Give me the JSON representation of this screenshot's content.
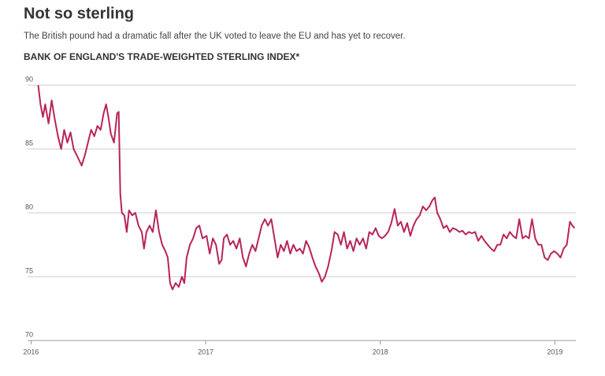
{
  "chart_data": {
    "type": "line",
    "title": "Not so sterling",
    "subtitle": "The British pound had a dramatic fall after the UK voted to leave the EU and has yet to recover.",
    "chart_title": "BANK OF ENGLAND'S TRADE-WEIGHTED STERLING INDEX*",
    "x": [
      2016.041,
      2016.054,
      2016.068,
      2016.081,
      2016.1,
      2016.118,
      2016.136,
      2016.154,
      2016.172,
      2016.19,
      2016.208,
      2016.226,
      2016.244,
      2016.262,
      2016.29,
      2016.308,
      2016.326,
      2016.344,
      2016.362,
      2016.38,
      2016.398,
      2016.416,
      2016.43,
      2016.443,
      2016.457,
      2016.475,
      2016.493,
      2016.502,
      2016.511,
      2016.52,
      2016.534,
      2016.548,
      2016.561,
      2016.579,
      2016.597,
      2016.615,
      2016.634,
      2016.647,
      2016.661,
      2016.679,
      2016.697,
      2016.715,
      2016.733,
      2016.751,
      2016.769,
      2016.783,
      2016.796,
      2016.81,
      2016.828,
      2016.846,
      2016.864,
      2016.878,
      2016.891,
      2016.91,
      2016.928,
      2016.946,
      2016.964,
      2016.982,
      2017.005,
      2017.023,
      2017.041,
      2017.059,
      2017.077,
      2017.091,
      2017.104,
      2017.122,
      2017.14,
      2017.158,
      2017.176,
      2017.195,
      2017.213,
      2017.231,
      2017.249,
      2017.267,
      2017.285,
      2017.303,
      2017.321,
      2017.339,
      2017.357,
      2017.376,
      2017.394,
      2017.412,
      2017.43,
      2017.448,
      2017.466,
      2017.484,
      2017.502,
      2017.52,
      2017.539,
      2017.557,
      2017.575,
      2017.593,
      2017.611,
      2017.629,
      2017.647,
      2017.665,
      2017.683,
      2017.701,
      2017.72,
      2017.738,
      2017.756,
      2017.774,
      2017.792,
      2017.81,
      2017.828,
      2017.846,
      2017.864,
      2017.882,
      2017.901,
      2017.919,
      2017.937,
      2017.955,
      2017.973,
      2017.991,
      2018.009,
      2018.027,
      2018.045,
      2018.063,
      2018.082,
      2018.1,
      2018.118,
      2018.136,
      2018.154,
      2018.172,
      2018.19,
      2018.208,
      2018.226,
      2018.244,
      2018.263,
      2018.281,
      2018.299,
      2018.312,
      2018.326,
      2018.344,
      2018.362,
      2018.38,
      2018.398,
      2018.416,
      2018.434,
      2018.453,
      2018.471,
      2018.489,
      2018.507,
      2018.525,
      2018.543,
      2018.561,
      2018.579,
      2018.597,
      2018.615,
      2018.634,
      2018.652,
      2018.67,
      2018.688,
      2018.706,
      2018.724,
      2018.742,
      2018.76,
      2018.778,
      2018.796,
      2018.815,
      2018.833,
      2018.851,
      2018.869,
      2018.887,
      2018.905,
      2018.923,
      2018.941,
      2018.959,
      2018.977,
      2018.996,
      2019.014,
      2019.032,
      2019.05,
      2019.068,
      2019.086,
      2019.1,
      2019.113
    ],
    "series": [
      {
        "color": "#b8245a",
        "values": [
          90.0,
          88.5,
          87.5,
          88.5,
          87.0,
          88.8,
          87.3,
          86.0,
          85.0,
          86.5,
          85.5,
          86.3,
          85.0,
          84.5,
          83.7,
          84.5,
          85.5,
          86.5,
          86.0,
          86.8,
          86.5,
          87.8,
          88.5,
          87.5,
          86.2,
          85.5,
          87.8,
          87.9,
          81.5,
          80.0,
          79.8,
          78.5,
          80.2,
          79.8,
          80.0,
          79.0,
          78.5,
          77.2,
          78.5,
          79.0,
          78.5,
          80.2,
          78.5,
          77.5,
          77.0,
          76.5,
          74.5,
          74.0,
          74.5,
          74.2,
          75.0,
          74.5,
          76.5,
          77.5,
          78.0,
          78.8,
          79.0,
          78.0,
          78.2,
          76.8,
          78.0,
          77.5,
          76.0,
          76.3,
          78.0,
          78.3,
          77.5,
          77.8,
          77.2,
          78.0,
          76.5,
          75.8,
          76.8,
          77.5,
          77.0,
          78.0,
          79.0,
          79.5,
          79.0,
          79.5,
          78.0,
          76.5,
          77.5,
          77.0,
          77.8,
          76.8,
          77.5,
          77.0,
          77.2,
          76.8,
          77.8,
          77.3,
          76.5,
          75.8,
          75.3,
          74.6,
          75.0,
          75.8,
          77.0,
          78.5,
          78.3,
          77.5,
          78.5,
          77.2,
          77.8,
          77.0,
          78.0,
          77.5,
          78.0,
          77.2,
          78.5,
          78.3,
          78.8,
          78.2,
          78.0,
          78.2,
          78.5,
          79.2,
          80.3,
          79.0,
          79.3,
          78.5,
          79.2,
          78.2,
          79.0,
          79.5,
          79.8,
          80.5,
          80.2,
          80.5,
          81.0,
          81.2,
          80.0,
          79.5,
          78.8,
          79.0,
          78.5,
          78.8,
          78.7,
          78.5,
          78.6,
          78.3,
          78.5,
          78.4,
          78.5,
          77.8,
          78.2,
          77.8,
          77.5,
          77.2,
          77.0,
          77.5,
          77.5,
          78.3,
          78.0,
          78.5,
          78.2,
          78.0,
          79.5,
          78.0,
          78.2,
          78.0,
          79.5,
          78.0,
          77.5,
          77.5,
          76.5,
          76.3,
          76.8,
          77.0,
          76.8,
          76.5,
          77.2,
          77.5,
          79.3,
          79.0,
          78.8
        ]
      }
    ],
    "xlim": [
      2015.98,
      2019.12
    ],
    "xticks": [
      2016,
      2017,
      2018,
      2019
    ],
    "ylim": [
      70,
      90
    ],
    "yticks": [
      70,
      75,
      80,
      85,
      90
    ],
    "grid": true
  }
}
